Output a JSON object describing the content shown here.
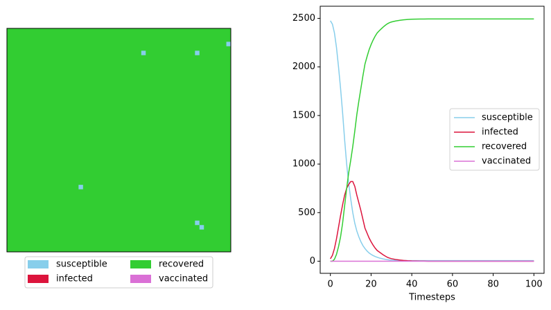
{
  "chart_data": [
    {
      "type": "grid",
      "rows": 50,
      "cols": 50,
      "fill_state": 2,
      "states": [
        {
          "name": "susceptible",
          "color": "#87ceeb"
        },
        {
          "name": "infected",
          "color": "#dc143c"
        },
        {
          "name": "recovered",
          "color": "#32cd32"
        },
        {
          "name": "vaccinated",
          "color": "#da70d6"
        }
      ],
      "cells": [
        {
          "row": 5,
          "col": 30,
          "state": 0
        },
        {
          "row": 5,
          "col": 42,
          "state": 0
        },
        {
          "row": 3,
          "col": 49,
          "state": 0
        },
        {
          "row": 35,
          "col": 16,
          "state": 0
        },
        {
          "row": 43,
          "col": 42,
          "state": 0
        },
        {
          "row": 44,
          "col": 43,
          "state": 0
        }
      ]
    },
    {
      "type": "line",
      "x_label": "Timesteps",
      "x": [
        0,
        1,
        2,
        3,
        4,
        5,
        6,
        7,
        8,
        9,
        10,
        11,
        12,
        13,
        14,
        15,
        16,
        17,
        18,
        19,
        20,
        21,
        22,
        23,
        24,
        25,
        26,
        27,
        28,
        29,
        30,
        32,
        34,
        36,
        38,
        40,
        42,
        44,
        46,
        48,
        50,
        60,
        70,
        80,
        90,
        100
      ],
      "series": [
        {
          "name": "susceptible",
          "color": "#87ceeb",
          "values": [
            2475,
            2440,
            2350,
            2200,
            2000,
            1780,
            1530,
            1250,
            1000,
            800,
            640,
            500,
            390,
            310,
            250,
            200,
            160,
            130,
            105,
            85,
            70,
            58,
            48,
            40,
            33,
            28,
            23,
            19,
            16,
            13,
            11,
            9,
            8,
            7,
            6,
            6,
            6,
            6,
            6,
            6,
            6,
            6,
            6,
            6,
            6,
            6
          ]
        },
        {
          "name": "infected",
          "color": "#dc143c",
          "values": [
            25,
            60,
            130,
            230,
            350,
            470,
            580,
            680,
            750,
            790,
            820,
            820,
            770,
            680,
            600,
            520,
            430,
            340,
            290,
            240,
            200,
            165,
            135,
            110,
            95,
            80,
            65,
            52,
            40,
            32,
            26,
            18,
            12,
            8,
            5,
            3,
            2,
            1,
            1,
            0,
            0,
            0,
            0,
            0,
            0,
            0
          ]
        },
        {
          "name": "recovered",
          "color": "#32cd32",
          "values": [
            0,
            0,
            20,
            70,
            150,
            250,
            390,
            570,
            750,
            910,
            1040,
            1180,
            1340,
            1510,
            1650,
            1780,
            1910,
            2030,
            2105,
            2175,
            2230,
            2277,
            2317,
            2350,
            2372,
            2392,
            2412,
            2429,
            2444,
            2455,
            2463,
            2473,
            2480,
            2485,
            2489,
            2491,
            2492,
            2493,
            2493,
            2494,
            2494,
            2494,
            2494,
            2494,
            2494,
            2494
          ]
        },
        {
          "name": "vaccinated",
          "color": "#da70d6",
          "values": [
            0,
            0,
            0,
            0,
            0,
            0,
            0,
            0,
            0,
            0,
            0,
            0,
            0,
            0,
            0,
            0,
            0,
            0,
            0,
            0,
            0,
            0,
            0,
            0,
            0,
            0,
            0,
            0,
            0,
            0,
            0,
            0,
            0,
            0,
            0,
            0,
            0,
            0,
            0,
            0,
            0,
            0,
            0,
            0,
            0,
            0
          ]
        }
      ],
      "xlim": [
        -5,
        105
      ],
      "ylim": [
        -125,
        2625
      ],
      "xticks": [
        0,
        20,
        40,
        60,
        80,
        100
      ],
      "yticks": [
        0,
        500,
        1000,
        1500,
        2000,
        2500
      ]
    }
  ]
}
